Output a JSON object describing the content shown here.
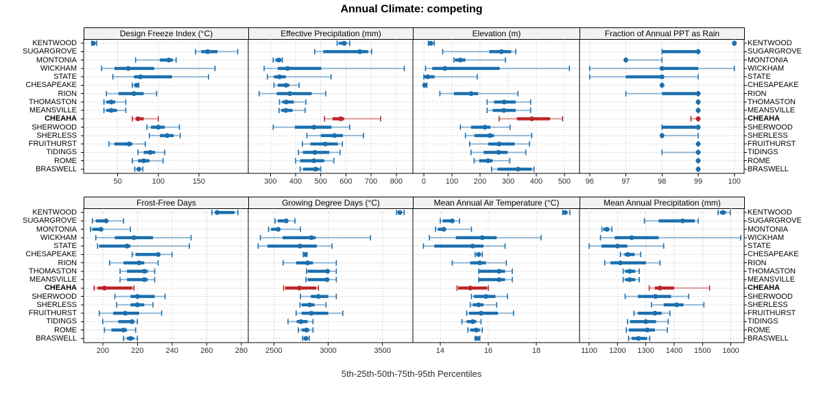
{
  "title": "Annual Climate: competing",
  "footer": "5th-25th-50th-75th-95th Percentiles",
  "highlight_site": "CHEAHA",
  "sites": [
    "KENTWOOD",
    "SUGARGROVE",
    "MONTONIA",
    "WICKHAM",
    "STATE",
    "CHESAPEAKE",
    "RION",
    "THOMASTON",
    "MEANSVILLE",
    "CHEAHA",
    "SHERWOOD",
    "SHERLESS",
    "FRUITHURST",
    "TIDINGS",
    "ROME",
    "BRASWELL"
  ],
  "colors": {
    "series_blue": "#1b6fae",
    "series_red": "#bb2526",
    "strip_bg": "#f2f2f2",
    "grid": "#c8c8c8",
    "panel_border": "#000000",
    "text": "#000000",
    "tick_text": "#2e2e2e"
  },
  "chart_data": {
    "type": "scatter",
    "variant": "trellis percentile dotplot (5-25-50-75-95 intervals per site)",
    "grid_layout": "2 rows x 4 columns, dotted gridlines, site labels on left and right",
    "percentile_order": [
      "5th",
      "25th",
      "50th",
      "75th",
      "95th"
    ],
    "panels": [
      {
        "title": "Design Freeze Index (°C)",
        "row": 1,
        "col": 1,
        "xlim": [
          8,
          211
        ],
        "ticks": [
          50,
          100,
          150
        ],
        "values": {
          "KENTWOOD": [
            18,
            19,
            20,
            21,
            24
          ],
          "SUGARGROVE": [
            146,
            153,
            161,
            173,
            198
          ],
          "MONTONIA": [
            72,
            102,
            113,
            118,
            122
          ],
          "WICKHAM": [
            30,
            46,
            63,
            95,
            170
          ],
          "STATE": [
            44,
            70,
            78,
            117,
            162
          ],
          "CHESAPEAKE": [
            68,
            71,
            73,
            74,
            76
          ],
          "RION": [
            36,
            51,
            70,
            82,
            98
          ],
          "THOMASTON": [
            33,
            36,
            42,
            47,
            60
          ],
          "MEANSVILLE": [
            33,
            36,
            42,
            49,
            60
          ],
          "CHEAHA": [
            68,
            72,
            75,
            82,
            100
          ],
          "SHERWOOD": [
            86,
            91,
            100,
            108,
            126
          ],
          "SHERLESS": [
            89,
            102,
            111,
            119,
            127
          ],
          "FRUITHURST": [
            39,
            46,
            64,
            68,
            84
          ],
          "TIDINGS": [
            75,
            82,
            90,
            96,
            108
          ],
          "ROME": [
            68,
            75,
            82,
            89,
            106
          ],
          "BRASWELL": [
            71,
            74,
            76,
            78,
            81
          ]
        }
      },
      {
        "title": "Effective Precipitation (mm)",
        "row": 1,
        "col": 2,
        "xlim": [
          212,
          866
        ],
        "ticks": [
          300,
          400,
          500,
          600,
          700,
          800
        ],
        "values": {
          "KENTWOOD": [
            565,
            572,
            593,
            603,
            615
          ],
          "SUGARGROVE": [
            476,
            510,
            655,
            688,
            702
          ],
          "MONTONIA": [
            311,
            320,
            333,
            343,
            347
          ],
          "WICKHAM": [
            275,
            329,
            368,
            502,
            832
          ],
          "STATE": [
            288,
            314,
            336,
            361,
            541
          ],
          "CHESAPEAKE": [
            314,
            329,
            362,
            375,
            414
          ],
          "RION": [
            255,
            325,
            377,
            464,
            520
          ],
          "THOMASTON": [
            336,
            347,
            363,
            393,
            441
          ],
          "MEANSVILLE": [
            334,
            343,
            361,
            388,
            438
          ],
          "CHEAHA": [
            515,
            547,
            579,
            593,
            738
          ],
          "SHERWOOD": [
            311,
            397,
            473,
            543,
            615
          ],
          "SHERLESS": [
            445,
            500,
            555,
            588,
            670
          ],
          "FRUITHURST": [
            427,
            459,
            518,
            568,
            586
          ],
          "TIDINGS": [
            411,
            429,
            477,
            534,
            577
          ],
          "ROME": [
            400,
            418,
            473,
            514,
            552
          ],
          "BRASWELL": [
            418,
            430,
            479,
            495,
            500
          ]
        }
      },
      {
        "title": "Elevation (m)",
        "row": 1,
        "col": 3,
        "xlim": [
          -39,
          554
        ],
        "ticks": [
          0,
          100,
          200,
          300,
          400,
          500
        ],
        "values": {
          "KENTWOOD": [
            16,
            20,
            25,
            30,
            37
          ],
          "SUGARGROVE": [
            67,
            233,
            276,
            311,
            327
          ],
          "MONTONIA": [
            107,
            111,
            130,
            148,
            290
          ],
          "WICKHAM": [
            6,
            30,
            75,
            270,
            518
          ],
          "STATE": [
            0,
            2,
            14,
            38,
            190
          ],
          "CHESAPEAKE": [
            0,
            2,
            3,
            5,
            11
          ],
          "RION": [
            57,
            107,
            168,
            193,
            335
          ],
          "THOMASTON": [
            225,
            250,
            286,
            327,
            380
          ],
          "MEANSVILLE": [
            225,
            245,
            285,
            327,
            380
          ],
          "CHEAHA": [
            268,
            331,
            384,
            449,
            494
          ],
          "SHERWOOD": [
            130,
            168,
            217,
            237,
            307
          ],
          "SHERLESS": [
            148,
            180,
            235,
            250,
            384
          ],
          "FRUITHURST": [
            163,
            229,
            268,
            323,
            376
          ],
          "TIDINGS": [
            168,
            213,
            266,
            298,
            363
          ],
          "ROME": [
            179,
            197,
            229,
            245,
            306
          ],
          "BRASWELL": [
            241,
            262,
            335,
            384,
            392
          ]
        }
      },
      {
        "title": "Fraction of Annual PPT as Rain",
        "row": 1,
        "col": 4,
        "xlim": [
          95.72,
          100.27
        ],
        "ticks": [
          96,
          97,
          98,
          99,
          100
        ],
        "values": {
          "KENTWOOD": [
            100,
            100,
            100,
            100,
            100
          ],
          "SUGARGROVE": [
            98,
            98,
            99,
            99,
            99
          ],
          "MONTONIA": [
            97,
            97,
            97,
            97,
            98
          ],
          "WICKHAM": [
            96,
            98,
            98,
            99,
            100
          ],
          "STATE": [
            96,
            97,
            98,
            98,
            99
          ],
          "CHESAPEAKE": [
            98,
            98,
            98,
            98,
            98
          ],
          "RION": [
            97,
            98,
            99,
            99,
            99
          ],
          "THOMASTON": [
            99,
            99,
            99,
            99,
            99
          ],
          "MEANSVILLE": [
            99,
            99,
            99,
            99,
            99
          ],
          "CHEAHA": [
            98.8,
            99,
            99,
            99,
            99
          ],
          "SHERWOOD": [
            98,
            98,
            99,
            99,
            99
          ],
          "SHERLESS": [
            98,
            98,
            98,
            98,
            99
          ],
          "FRUITHURST": [
            99,
            99,
            99,
            99,
            99
          ],
          "TIDINGS": [
            98,
            99,
            99,
            99,
            99
          ],
          "ROME": [
            99,
            99,
            99,
            99,
            99
          ],
          "BRASWELL": [
            99,
            99,
            99,
            99,
            99
          ]
        }
      },
      {
        "title": "Frost-Free Days",
        "row": 2,
        "col": 1,
        "xlim": [
          189,
          284
        ],
        "ticks": [
          200,
          220,
          240,
          260,
          280
        ],
        "values": {
          "KENTWOOD": [
            263,
            265,
            266,
            276,
            278
          ],
          "SUGARGROVE": [
            194,
            196,
            202,
            203,
            212
          ],
          "MONTONIA": [
            193,
            194,
            199,
            200,
            216
          ],
          "WICKHAM": [
            196,
            207,
            218,
            229,
            251
          ],
          "STATE": [
            197,
            198,
            214,
            216,
            250
          ],
          "CHESAPEAKE": [
            217,
            219,
            232,
            233,
            240
          ],
          "RION": [
            204,
            212,
            221,
            224,
            232
          ],
          "THOMASTON": [
            210,
            214,
            224,
            226,
            230
          ],
          "MEANSVILLE": [
            210,
            214,
            224,
            226,
            230
          ],
          "CHEAHA": [
            195,
            197,
            201,
            217,
            218
          ],
          "SHERWOOD": [
            207,
            216,
            220,
            230,
            236
          ],
          "SHERLESS": [
            208,
            216,
            220,
            224,
            229
          ],
          "FRUITHURST": [
            198,
            206,
            213,
            221,
            234
          ],
          "TIDINGS": [
            200,
            209,
            217,
            218,
            220
          ],
          "ROME": [
            201,
            205,
            212,
            214,
            219
          ],
          "BRASWELL": [
            212,
            214,
            216,
            218,
            220
          ]
        }
      },
      {
        "title": "Growing Degree Days (°C)",
        "row": 2,
        "col": 2,
        "xlim": [
          2264,
          3780
        ],
        "ticks": [
          2500,
          3000,
          3500
        ],
        "values": {
          "KENTWOOD": [
            3630,
            3645,
            3660,
            3675,
            3700
          ],
          "SUGARGROVE": [
            2510,
            2536,
            2614,
            2626,
            2694
          ],
          "MONTONIA": [
            2450,
            2475,
            2540,
            2550,
            2745
          ],
          "WICKHAM": [
            2375,
            2580,
            2845,
            2885,
            3390
          ],
          "STATE": [
            2355,
            2440,
            2740,
            2895,
            3035
          ],
          "CHESAPEAKE": [
            2770,
            2780,
            2790,
            2795,
            2805
          ],
          "RION": [
            2585,
            2705,
            2810,
            2860,
            3075
          ],
          "THOMASTON": [
            2800,
            2810,
            2995,
            3005,
            3075
          ],
          "MEANSVILLE": [
            2795,
            2810,
            2990,
            3005,
            3075
          ],
          "CHEAHA": [
            2590,
            2605,
            2735,
            2890,
            2910
          ],
          "SHERWOOD": [
            2745,
            2840,
            2910,
            3000,
            3075
          ],
          "SHERLESS": [
            2740,
            2755,
            2830,
            2875,
            2980
          ],
          "FRUITHURST": [
            2705,
            2755,
            2845,
            3000,
            3135
          ],
          "TIDINGS": [
            2630,
            2710,
            2750,
            2810,
            2860
          ],
          "ROME": [
            2725,
            2755,
            2800,
            2825,
            2860
          ],
          "BRASWELL": [
            2765,
            2775,
            2795,
            2815,
            2825
          ]
        }
      },
      {
        "title": "Mean Annual Air Temperature (°C)",
        "row": 2,
        "col": 3,
        "xlim": [
          12.86,
          19.8
        ],
        "ticks": [
          14,
          16,
          18
        ],
        "values": {
          "KENTWOOD": [
            19.1,
            19.15,
            19.2,
            19.3,
            19.4
          ],
          "SUGARGROVE": [
            14.0,
            14.1,
            14.5,
            14.55,
            14.8
          ],
          "MONTONIA": [
            13.8,
            13.9,
            14.15,
            14.2,
            15.3
          ],
          "WICKHAM": [
            13.55,
            14.65,
            15.75,
            16.35,
            18.2
          ],
          "STATE": [
            13.3,
            13.75,
            15.35,
            15.8,
            16.7
          ],
          "CHESAPEAKE": [
            15.45,
            15.5,
            15.6,
            15.65,
            15.75
          ],
          "RION": [
            14.5,
            15.25,
            15.65,
            15.9,
            16.75
          ],
          "THOMASTON": [
            15.6,
            15.62,
            16.45,
            16.7,
            17.0
          ],
          "MEANSVILLE": [
            15.6,
            15.62,
            16.45,
            16.7,
            17.0
          ],
          "CHEAHA": [
            14.7,
            14.75,
            15.25,
            15.95,
            16.0
          ],
          "SHERWOOD": [
            15.3,
            15.4,
            15.9,
            16.3,
            16.8
          ],
          "SHERLESS": [
            15.25,
            15.35,
            15.6,
            15.8,
            16.35
          ],
          "FRUITHURST": [
            15.1,
            15.2,
            15.7,
            16.4,
            17.05
          ],
          "TIDINGS": [
            14.9,
            15.1,
            15.35,
            15.5,
            15.7
          ],
          "ROME": [
            15.15,
            15.25,
            15.5,
            15.65,
            15.75
          ],
          "BRASWELL": [
            15.45,
            15.5,
            15.55,
            15.6,
            15.65
          ]
        }
      },
      {
        "title": "Mean Annual Precipitation (mm)",
        "row": 2,
        "col": 4,
        "xlim": [
          1066,
          1647
        ],
        "ticks": [
          1100,
          1200,
          1300,
          1400,
          1500,
          1600
        ],
        "values": {
          "KENTWOOD": [
            1555,
            1562,
            1572,
            1583,
            1598
          ],
          "SUGARGROVE": [
            1295,
            1345,
            1430,
            1473,
            1485
          ],
          "MONTONIA": [
            1145,
            1150,
            1163,
            1171,
            1180
          ],
          "WICKHAM": [
            1140,
            1190,
            1250,
            1345,
            1635
          ],
          "STATE": [
            1100,
            1143,
            1200,
            1235,
            1363
          ],
          "CHESAPEAKE": [
            1210,
            1225,
            1237,
            1260,
            1282
          ],
          "RION": [
            1155,
            1175,
            1210,
            1300,
            1350
          ],
          "THOMASTON": [
            1220,
            1227,
            1243,
            1263,
            1277
          ],
          "MEANSVILLE": [
            1220,
            1227,
            1243,
            1263,
            1277
          ],
          "CHEAHA": [
            1312,
            1332,
            1350,
            1400,
            1525
          ],
          "SHERWOOD": [
            1227,
            1272,
            1334,
            1389,
            1451
          ],
          "SHERLESS": [
            1320,
            1363,
            1409,
            1433,
            1505
          ],
          "FRUITHURST": [
            1258,
            1272,
            1332,
            1356,
            1385
          ],
          "TIDINGS": [
            1235,
            1245,
            1300,
            1336,
            1379
          ],
          "ROME": [
            1231,
            1240,
            1306,
            1332,
            1376
          ],
          "BRASWELL": [
            1239,
            1250,
            1274,
            1304,
            1314
          ]
        }
      }
    ]
  }
}
